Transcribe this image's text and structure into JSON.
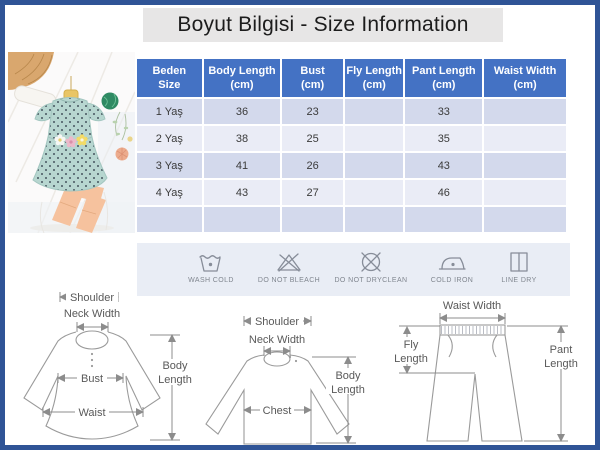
{
  "title": "Boyut Bilgisi - Size Information",
  "size_table": {
    "columns": [
      {
        "line1": "Beden",
        "line2": "Size"
      },
      {
        "line1": "Body Length",
        "line2": "(cm)"
      },
      {
        "line1": "Bust",
        "line2": "(cm)"
      },
      {
        "line1": "Fly Length",
        "line2": "(cm)"
      },
      {
        "line1": "Pant Length",
        "line2": "(cm)"
      },
      {
        "line1": "Waist Width",
        "line2": "(cm)"
      }
    ],
    "rows": [
      [
        "1 Yaş",
        "36",
        "23",
        "",
        "33",
        ""
      ],
      [
        "2 Yaş",
        "38",
        "25",
        "",
        "35",
        ""
      ],
      [
        "3 Yaş",
        "41",
        "26",
        "",
        "43",
        ""
      ],
      [
        "4 Yaş",
        "43",
        "27",
        "",
        "46",
        ""
      ],
      [
        "",
        "",
        "",
        "",
        "",
        ""
      ]
    ]
  },
  "care_icons": {
    "items": [
      {
        "icon": "wash-cold-icon",
        "label": "WASH COLD"
      },
      {
        "icon": "do-not-bleach-icon",
        "label": "DO NOT BLEACH"
      },
      {
        "icon": "do-not-dryclean-icon",
        "label": "DO NOT DRYCLEAN"
      },
      {
        "icon": "cold-iron-icon",
        "label": "COLD IRON"
      },
      {
        "icon": "line-dry-icon",
        "label": "LINE DRY"
      }
    ]
  },
  "diagrams": {
    "dress": {
      "shoulder": "Shoulder",
      "neck_width": "Neck Width",
      "bust": "Bust",
      "waist": "Waist",
      "body_length_line1": "Body",
      "body_length_line2": "Length"
    },
    "top": {
      "shoulder": "Shoulder",
      "neck_width": "Neck Width",
      "chest": "Chest",
      "body_length_line1": "Body",
      "body_length_line2": "Length"
    },
    "pants": {
      "waist_width": "Waist Width",
      "fly_length_line1": "Fly",
      "fly_length_line2": "Length",
      "pant_length_line1": "Pant",
      "pant_length_line2": "Length"
    }
  },
  "colors": {
    "frame": "#2f5496",
    "table_header_bg": "#4472c4",
    "row_alt_dark": "#d3d9ec",
    "row_alt_light": "#eaecf6",
    "care_strip_bg": "#e9edf5",
    "title_bg": "#e7e6e6"
  }
}
